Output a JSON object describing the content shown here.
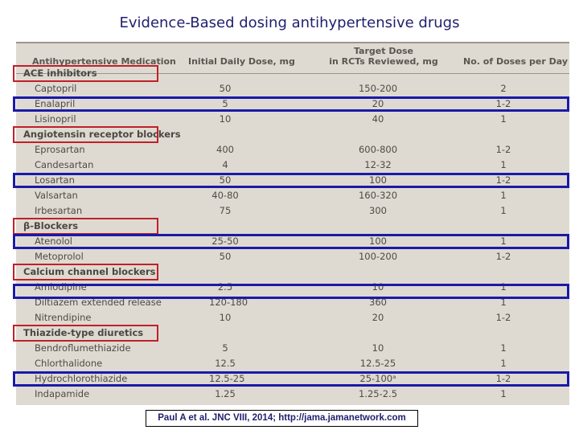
{
  "title": "Evidence-Based dosing antihypertensive drugs",
  "table": {
    "headers": {
      "medication": "Antihypertensive Medication",
      "initial": "Initial Daily Dose, mg",
      "target_line1": "Target Dose",
      "target_line2": "in RCTs Reviewed, mg",
      "doses": "No. of Doses per Day"
    },
    "rows": [
      {
        "type": "group",
        "name": "ACE inhibitors"
      },
      {
        "type": "drug",
        "name": "Captopril",
        "initial": "50",
        "target": "150-200",
        "doses": "2"
      },
      {
        "type": "drug",
        "name": "Enalapril",
        "initial": "5",
        "target": "20",
        "doses": "1-2"
      },
      {
        "type": "drug",
        "name": "Lisinopril",
        "initial": "10",
        "target": "40",
        "doses": "1"
      },
      {
        "type": "group",
        "name": "Angiotensin receptor blockers"
      },
      {
        "type": "drug",
        "name": "Eprosartan",
        "initial": "400",
        "target": "600-800",
        "doses": "1-2"
      },
      {
        "type": "drug",
        "name": "Candesartan",
        "initial": "4",
        "target": "12-32",
        "doses": "1"
      },
      {
        "type": "drug",
        "name": "Losartan",
        "initial": "50",
        "target": "100",
        "doses": "1-2"
      },
      {
        "type": "drug",
        "name": "Valsartan",
        "initial": "40-80",
        "target": "160-320",
        "doses": "1"
      },
      {
        "type": "drug",
        "name": "Irbesartan",
        "initial": "75",
        "target": "300",
        "doses": "1"
      },
      {
        "type": "group",
        "name": "β-Blockers"
      },
      {
        "type": "drug",
        "name": "Atenolol",
        "initial": "25-50",
        "target": "100",
        "doses": "1"
      },
      {
        "type": "drug",
        "name": "Metoprolol",
        "initial": "50",
        "target": "100-200",
        "doses": "1-2"
      },
      {
        "type": "group",
        "name": "Calcium channel blockers"
      },
      {
        "type": "drug",
        "name": "Amlodipine",
        "initial": "2.5",
        "target": "10",
        "doses": "1"
      },
      {
        "type": "drug",
        "name": "Diltiazem extended release",
        "initial": "120-180",
        "target": "360",
        "doses": "1"
      },
      {
        "type": "drug",
        "name": "Nitrendipine",
        "initial": "10",
        "target": "20",
        "doses": "1-2"
      },
      {
        "type": "group",
        "name": "Thiazide-type diuretics"
      },
      {
        "type": "drug",
        "name": "Bendroflumethiazide",
        "initial": "5",
        "target": "10",
        "doses": "1"
      },
      {
        "type": "drug",
        "name": "Chlorthalidone",
        "initial": "12.5",
        "target": "12.5-25",
        "doses": "1"
      },
      {
        "type": "drug",
        "name": "Hydrochlorothiazide",
        "initial": "12.5-25",
        "target": "25-100ᵃ",
        "doses": "1-2"
      },
      {
        "type": "drug",
        "name": "Indapamide",
        "initial": "1.25",
        "target": "1.25-2.5",
        "doses": "1"
      }
    ]
  },
  "highlight_colors": {
    "group_box": "#c0202a",
    "drug_box": "#1a1aa8"
  },
  "citation": "Paul A et al. JNC VIII, 2014; http://jama.jamanetwork.com"
}
